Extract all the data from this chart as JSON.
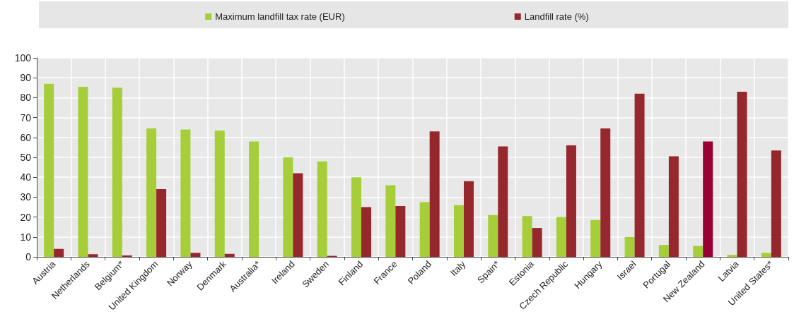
{
  "chart_data": {
    "type": "bar",
    "categories": [
      "Austria",
      "Netherlands",
      "Belgium*",
      "United Kingdom",
      "Norway",
      "Denmark",
      "Australia*",
      "Ireland",
      "Sweden",
      "Finland",
      "France",
      "Poland",
      "Italy",
      "Spain*",
      "Estonia",
      "Czech Republic",
      "Hungary",
      "Israel",
      "Portugal",
      "New Zealand",
      "Latvia",
      "United States*"
    ],
    "series": [
      {
        "name": "Maximum landfill tax rate (EUR)",
        "color": "#a6ce39",
        "values": [
          87,
          85.5,
          85,
          64.5,
          64,
          63.5,
          58,
          50,
          48,
          40,
          36,
          27.5,
          26,
          21,
          20.5,
          20,
          18.5,
          10,
          6,
          5.5,
          1,
          2
        ]
      },
      {
        "name": "Landfill rate (%)",
        "color": "#96272d",
        "colors": [
          "#96272d",
          "#96272d",
          "#96272d",
          "#96272d",
          "#96272d",
          "#96272d",
          "#96272d",
          "#96272d",
          "#96272d",
          "#96272d",
          "#96272d",
          "#96272d",
          "#96272d",
          "#96272d",
          "#96272d",
          "#96272d",
          "#96272d",
          "#96272d",
          "#96272d",
          "#990033",
          "#96272d",
          "#96272d"
        ],
        "values": [
          4,
          1.3,
          0.7,
          34,
          2,
          1.5,
          null,
          42,
          0.5,
          25,
          25.5,
          63,
          38,
          55.5,
          14.5,
          56,
          64.5,
          82,
          50.5,
          58,
          83,
          53.5
        ]
      }
    ],
    "ylim": [
      0,
      100
    ],
    "yticks": [
      0,
      10,
      20,
      30,
      40,
      50,
      60,
      70,
      80,
      90,
      100
    ],
    "grid": true,
    "legend": "top"
  }
}
